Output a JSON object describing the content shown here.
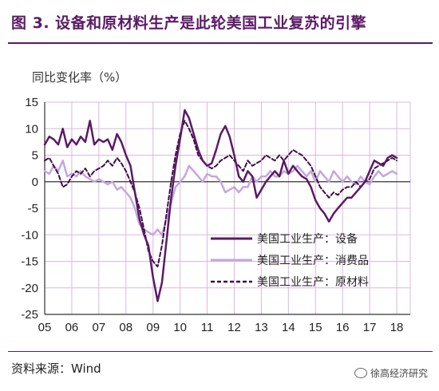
{
  "title": "图 3. 设备和原材料生产是此轮美国工业复苏的引擎",
  "source": "资料来源：Wind",
  "watermark": "徐高经济研究",
  "watermark_icon": "wechat-icon",
  "chart_data": {
    "type": "line",
    "ylabel": "同比变化率（%）",
    "xlabel": "",
    "ylim": [
      -25,
      15
    ],
    "yticks": [
      15,
      10,
      5,
      0,
      -5,
      -10,
      -15,
      -20,
      -25
    ],
    "xlim": [
      2005,
      2018.5
    ],
    "xticks": [
      {
        "label": "05",
        "x": 2005
      },
      {
        "label": "06",
        "x": 2006
      },
      {
        "label": "07",
        "x": 2007
      },
      {
        "label": "08",
        "x": 2008
      },
      {
        "label": "09",
        "x": 2009
      },
      {
        "label": "10",
        "x": 2010
      },
      {
        "label": "11",
        "x": 2011
      },
      {
        "label": "12",
        "x": 2012
      },
      {
        "label": "13",
        "x": 2013
      },
      {
        "label": "14",
        "x": 2014
      },
      {
        "label": "15",
        "x": 2015
      },
      {
        "label": "16",
        "x": 2016
      },
      {
        "label": "17",
        "x": 2017
      },
      {
        "label": "18",
        "x": 2018
      }
    ],
    "grid": true,
    "legend_position": "center-right",
    "series": [
      {
        "name": "美国工业生产：设备",
        "color": "#5b1a66",
        "style": "solid",
        "width": 2.5,
        "x": [
          2005.0,
          2005.17,
          2005.33,
          2005.5,
          2005.67,
          2005.83,
          2006.0,
          2006.17,
          2006.33,
          2006.5,
          2006.67,
          2006.83,
          2007.0,
          2007.17,
          2007.33,
          2007.5,
          2007.67,
          2007.83,
          2008.0,
          2008.17,
          2008.33,
          2008.5,
          2008.67,
          2008.83,
          2009.0,
          2009.17,
          2009.33,
          2009.5,
          2009.67,
          2009.83,
          2010.0,
          2010.17,
          2010.33,
          2010.5,
          2010.67,
          2010.83,
          2011.0,
          2011.17,
          2011.33,
          2011.5,
          2011.67,
          2011.83,
          2012.0,
          2012.17,
          2012.33,
          2012.5,
          2012.67,
          2012.83,
          2013.0,
          2013.17,
          2013.33,
          2013.5,
          2013.67,
          2013.83,
          2014.0,
          2014.17,
          2014.33,
          2014.5,
          2014.67,
          2014.83,
          2015.0,
          2015.17,
          2015.33,
          2015.5,
          2015.67,
          2015.83,
          2016.0,
          2016.17,
          2016.33,
          2016.5,
          2016.67,
          2016.83,
          2017.0,
          2017.17,
          2017.33,
          2017.5,
          2017.67,
          2017.83,
          2018.0
        ],
        "y": [
          7,
          8.5,
          8,
          7,
          10,
          6.5,
          8,
          7,
          8.5,
          7.5,
          11.5,
          7,
          8,
          7.5,
          8,
          6,
          9,
          7.5,
          5,
          3,
          -2,
          -7,
          -10,
          -12,
          -18,
          -22.5,
          -19,
          -11,
          -3,
          3,
          8,
          13.5,
          12,
          9,
          6,
          4,
          3,
          3.5,
          6,
          9,
          10.5,
          8.5,
          5,
          1,
          0,
          2,
          1,
          -3,
          -1.5,
          0,
          1,
          2,
          1,
          4,
          1.5,
          3,
          2,
          1,
          0.5,
          -1,
          -3.5,
          -5,
          -6,
          -7.5,
          -6,
          -5,
          -4,
          -3,
          -3,
          -2,
          -1,
          0,
          2,
          4,
          3.5,
          3,
          4.5,
          5,
          4.5
        ]
      },
      {
        "name": "美国工业生产：消费品",
        "color": "#c4a6e0",
        "style": "solid",
        "width": 2.5,
        "x": [
          2005.0,
          2005.17,
          2005.33,
          2005.5,
          2005.67,
          2005.83,
          2006.0,
          2006.17,
          2006.33,
          2006.5,
          2006.67,
          2006.83,
          2007.0,
          2007.17,
          2007.33,
          2007.5,
          2007.67,
          2007.83,
          2008.0,
          2008.17,
          2008.33,
          2008.5,
          2008.67,
          2008.83,
          2009.0,
          2009.17,
          2009.33,
          2009.5,
          2009.67,
          2009.83,
          2010.0,
          2010.17,
          2010.33,
          2010.5,
          2010.67,
          2010.83,
          2011.0,
          2011.17,
          2011.33,
          2011.5,
          2011.67,
          2011.83,
          2012.0,
          2012.17,
          2012.33,
          2012.5,
          2012.67,
          2012.83,
          2013.0,
          2013.17,
          2013.33,
          2013.5,
          2013.67,
          2013.83,
          2014.0,
          2014.17,
          2014.33,
          2014.5,
          2014.67,
          2014.83,
          2015.0,
          2015.17,
          2015.33,
          2015.5,
          2015.67,
          2015.83,
          2016.0,
          2016.17,
          2016.33,
          2016.5,
          2016.67,
          2016.83,
          2017.0,
          2017.17,
          2017.33,
          2017.5,
          2017.67,
          2017.83,
          2018.0
        ],
        "y": [
          2,
          1.5,
          3,
          2,
          4,
          1,
          1.5,
          1,
          2,
          1,
          0.5,
          0,
          0.5,
          0,
          -0.5,
          0,
          -1.5,
          -1,
          -2,
          -3,
          -5,
          -8,
          -9,
          -9.5,
          -10,
          -9,
          -10,
          -7,
          -4,
          -1,
          0,
          1,
          3,
          2,
          1,
          0,
          1.5,
          1,
          1,
          0,
          -2,
          -1.5,
          -1,
          -2,
          -1,
          -1,
          1,
          0,
          1,
          1,
          2,
          1,
          1,
          2,
          1.5,
          2,
          3,
          2,
          1,
          2,
          0,
          2,
          1,
          0,
          2,
          1,
          0,
          1,
          0,
          -0.5,
          1,
          0,
          -0.5,
          1,
          2,
          1,
          1.5,
          2,
          1.5
        ]
      },
      {
        "name": "美国工业生产：原材料",
        "color": "#3d0f46",
        "style": "dashed",
        "width": 2,
        "x": [
          2005.0,
          2005.17,
          2005.33,
          2005.5,
          2005.67,
          2005.83,
          2006.0,
          2006.17,
          2006.33,
          2006.5,
          2006.67,
          2006.83,
          2007.0,
          2007.17,
          2007.33,
          2007.5,
          2007.67,
          2007.83,
          2008.0,
          2008.17,
          2008.33,
          2008.5,
          2008.67,
          2008.83,
          2009.0,
          2009.17,
          2009.33,
          2009.5,
          2009.67,
          2009.83,
          2010.0,
          2010.17,
          2010.33,
          2010.5,
          2010.67,
          2010.83,
          2011.0,
          2011.17,
          2011.33,
          2011.5,
          2011.67,
          2011.83,
          2012.0,
          2012.17,
          2012.33,
          2012.5,
          2012.67,
          2012.83,
          2013.0,
          2013.17,
          2013.33,
          2013.5,
          2013.67,
          2013.83,
          2014.0,
          2014.17,
          2014.33,
          2014.5,
          2014.67,
          2014.83,
          2015.0,
          2015.17,
          2015.33,
          2015.5,
          2015.67,
          2015.83,
          2016.0,
          2016.17,
          2016.33,
          2016.5,
          2016.67,
          2016.83,
          2017.0,
          2017.17,
          2017.33,
          2017.5,
          2017.67,
          2017.83,
          2018.0
        ],
        "y": [
          4,
          4.5,
          3,
          1.5,
          -1,
          -0.5,
          1,
          2,
          1.5,
          2.5,
          1,
          2,
          2.5,
          3,
          4,
          3,
          4.5,
          3.5,
          2,
          0,
          -2,
          -5,
          -9,
          -13,
          -15,
          -16,
          -12,
          -6,
          0,
          5,
          9,
          11.5,
          10,
          8,
          5,
          4,
          3,
          2.5,
          3,
          4,
          4.5,
          5,
          4,
          3,
          2,
          4,
          3,
          3.5,
          4,
          5,
          4.5,
          4,
          5,
          4,
          5,
          6,
          5.5,
          5,
          4,
          3,
          1,
          -1,
          -2,
          -3,
          -2,
          -2.5,
          -1.5,
          -1,
          -1,
          0,
          -1,
          0,
          0.5,
          2.5,
          3,
          3.5,
          4,
          4.5,
          4
        ]
      }
    ]
  }
}
